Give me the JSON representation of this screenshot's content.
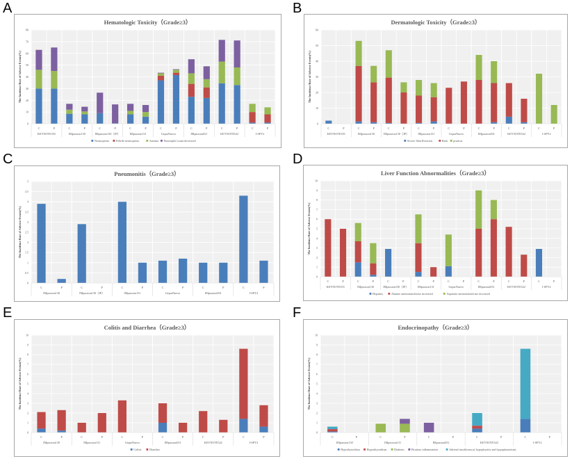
{
  "panel_letters": [
    "A",
    "B",
    "C",
    "D",
    "E",
    "F"
  ],
  "colors": {
    "blue": "#4a7ebb",
    "red": "#be4b48",
    "green": "#98b954",
    "purple": "#7d60a0",
    "teal": "#46aac5",
    "plot_bg": "#f0f0f0",
    "grid": "#ffffff"
  },
  "chart_data": [
    {
      "type": "bar",
      "stacked": true,
      "title": "Hematologic Toxicity（Grade≥3）",
      "ylabel": "The Incidence Rate of Adverse Events(%)",
      "xlabel": "",
      "ylim": [
        0,
        80
      ],
      "ystep": 10,
      "grid": true,
      "legend": "bottom",
      "groups": [
        "KEYNOTE355",
        "IMpassion130",
        "IMpassion130（JP）",
        "IMpassion131",
        "GeparNuevo",
        "IMpassion031",
        "KEYNOTE522",
        "I-SPY2"
      ],
      "arms": [
        "C",
        "P"
      ],
      "series": [
        {
          "name": "Neutropenia",
          "color": "#4a7ebb",
          "values": [
            30,
            30,
            8.5,
            8,
            9,
            0.5,
            8,
            6,
            37,
            41.5,
            23,
            22,
            34.5,
            33,
            1,
            1
          ]
        },
        {
          "name": "Febrile neutropenia",
          "color": "#be4b48",
          "values": [
            0,
            0,
            0,
            0,
            0,
            0,
            0,
            0,
            4,
            2,
            11,
            9,
            0,
            0,
            9,
            7
          ]
        },
        {
          "name": "Anemia",
          "color": "#98b954",
          "values": [
            16,
            15,
            3.5,
            2.5,
            0,
            0,
            3,
            4,
            2,
            2.5,
            9,
            7,
            18.5,
            15,
            7,
            6
          ]
        },
        {
          "name": "Neutrophil count decreased",
          "color": "#7d60a0",
          "values": [
            17,
            20,
            5,
            4,
            17.5,
            16,
            6,
            6,
            0.5,
            0.5,
            12,
            11,
            18.5,
            23,
            0,
            0
          ]
        }
      ]
    },
    {
      "type": "bar",
      "stacked": true,
      "title": "Dermatologic Toxicity（Grade≥3）",
      "ylabel": "The Incidence Rate of Adverse Events(%)",
      "xlabel": "",
      "ylim": [
        0,
        60
      ],
      "ystep": 10,
      "grid": true,
      "legend": "bottom",
      "groups": [
        "KEYNOTE355",
        "IMpassion130",
        "IMpassion130（JP）",
        "IMpassion131",
        "GeparNuevo",
        "IMpassion031",
        "KEYNOTE522",
        "I-SPY2"
      ],
      "arms": [
        "C",
        "P"
      ],
      "series": [
        {
          "name": "Severe Skin Reaction",
          "color": "#4a7ebb",
          "values": [
            2,
            0,
            1.5,
            1,
            0.5,
            0,
            0.5,
            1.5,
            0,
            0,
            0,
            1,
            4.5,
            1,
            0,
            0
          ]
        },
        {
          "name": "Rash",
          "color": "#be4b48",
          "values": [
            0,
            0,
            35.5,
            25.5,
            29,
            20,
            17.5,
            15.5,
            23,
            27,
            28,
            25,
            21.5,
            15,
            0,
            0
          ]
        },
        {
          "name": "pruritus",
          "color": "#98b954",
          "values": [
            0,
            0,
            16,
            10.5,
            17.5,
            6.5,
            10,
            9,
            0,
            0,
            16,
            14,
            0,
            0,
            32,
            12
          ]
        }
      ]
    },
    {
      "type": "bar",
      "stacked": false,
      "title": "Pneumonitis（Grade≥3）",
      "ylabel": "The Incidence Rate of Adverse Events(%)",
      "xlabel": "",
      "ylim": [
        0,
        5
      ],
      "ystep": 0.5,
      "grid": true,
      "legend": "none",
      "groups": [
        "IMpassion130",
        "IMpassion130（JP）",
        "IMpassion131",
        "GeparNuevo",
        "IMpassion031",
        "I-SPY2"
      ],
      "arms": [
        "C",
        "P"
      ],
      "series": [
        {
          "name": "Pneumonitis",
          "color": "#4a7ebb",
          "values": [
            3.9,
            0.2,
            2.9,
            0,
            4.0,
            1.0,
            1.1,
            1.2,
            1.0,
            1.0,
            4.3,
            1.1
          ]
        }
      ]
    },
    {
      "type": "bar",
      "stacked": true,
      "title": "Liver Function Abnormalities（Grade≥3）",
      "ylabel": "The Incidence Rate of Adverse Events(%)",
      "xlabel": "",
      "ylim": [
        0,
        10
      ],
      "ystep": 1,
      "grid": true,
      "legend": "bottom",
      "groups": [
        "KEYNOTE355",
        "IMpassion130",
        "IMpassion130（JP）",
        "IMpassion131",
        "GeparNuevo",
        "IMpassion031",
        "KEYNOTE522",
        "I-SPY2"
      ],
      "arms": [
        "C",
        "P"
      ],
      "series": [
        {
          "name": "Hepatitis",
          "color": "#4a7ebb",
          "values": [
            0,
            0,
            1.5,
            0.2,
            2.9,
            0,
            0.5,
            0,
            1.1,
            0,
            0,
            0,
            0,
            0,
            2.9,
            0
          ]
        },
        {
          "name": "Alanine aminotransferase increased",
          "color": "#be4b48",
          "values": [
            6,
            5,
            2.2,
            1.2,
            0,
            0,
            3,
            1,
            0,
            0,
            5,
            6,
            5.2,
            2.3,
            0,
            0
          ]
        },
        {
          "name": "Aspartate aminotransferase increased",
          "color": "#98b954",
          "values": [
            0,
            0,
            1.9,
            2.1,
            0,
            0,
            3,
            0,
            3.3,
            0,
            4,
            2,
            0,
            0,
            0,
            0
          ]
        }
      ]
    },
    {
      "type": "bar",
      "stacked": true,
      "title": "Colitis and Diarrhea（Grade≥3）",
      "ylabel": "The Incidence Rate of Adverse Events(%)",
      "xlabel": "",
      "ylim": [
        0,
        10
      ],
      "ystep": 1,
      "grid": true,
      "legend": "bottom",
      "groups": [
        "IMpassion130",
        "IMpassion131",
        "GeparNuevo",
        "IMpassion031",
        "KEYNOTE522",
        "I-SPY2"
      ],
      "arms": [
        "C",
        "P"
      ],
      "series": [
        {
          "name": "Colitis",
          "color": "#4a7ebb",
          "values": [
            0.4,
            0.2,
            0,
            0,
            0,
            0,
            1,
            0,
            0,
            0,
            1.4,
            0.6
          ]
        },
        {
          "name": "Diarrhea",
          "color": "#be4b48",
          "values": [
            1.7,
            2.1,
            1,
            2,
            3.3,
            0,
            2,
            1,
            2.2,
            1.3,
            7.2,
            2.2
          ]
        }
      ]
    },
    {
      "type": "bar",
      "stacked": true,
      "title": "Endocrinopathy（Grade≥3）",
      "ylabel": "The Incidence Rate of Adverse Events(%)",
      "xlabel": "",
      "ylim": [
        0,
        10
      ],
      "ystep": 1,
      "grid": true,
      "legend": "bottom",
      "groups": [
        "IMpassion130",
        "IMpassion131",
        "IMpassion031",
        "KEYNOTE522",
        "I-SPY2"
      ],
      "arms": [
        "C",
        "P"
      ],
      "series": [
        {
          "name": "Hypothyroidism",
          "color": "#4a7ebb",
          "values": [
            0.1,
            0,
            0,
            0,
            0,
            0,
            0.4,
            0,
            1.4,
            0
          ]
        },
        {
          "name": "Hyperthyroidism",
          "color": "#be4b48",
          "values": [
            0.25,
            0,
            0,
            0,
            0,
            0,
            0.3,
            0,
            0,
            0
          ]
        },
        {
          "name": "Diabetes",
          "color": "#98b954",
          "values": [
            0,
            0,
            0.9,
            0.9,
            0,
            0,
            0,
            0,
            0,
            0
          ]
        },
        {
          "name": "Pituitary inflammation",
          "color": "#7d60a0",
          "values": [
            0,
            0,
            0,
            0.5,
            1.0,
            0,
            0,
            0,
            0,
            0
          ]
        },
        {
          "name": "Adrenal insufficiency( hypophysitis and hypopituitarism)",
          "color": "#46aac5",
          "values": [
            0.25,
            0,
            0,
            0,
            0,
            0,
            1.3,
            0,
            7.2,
            0
          ]
        }
      ]
    }
  ]
}
